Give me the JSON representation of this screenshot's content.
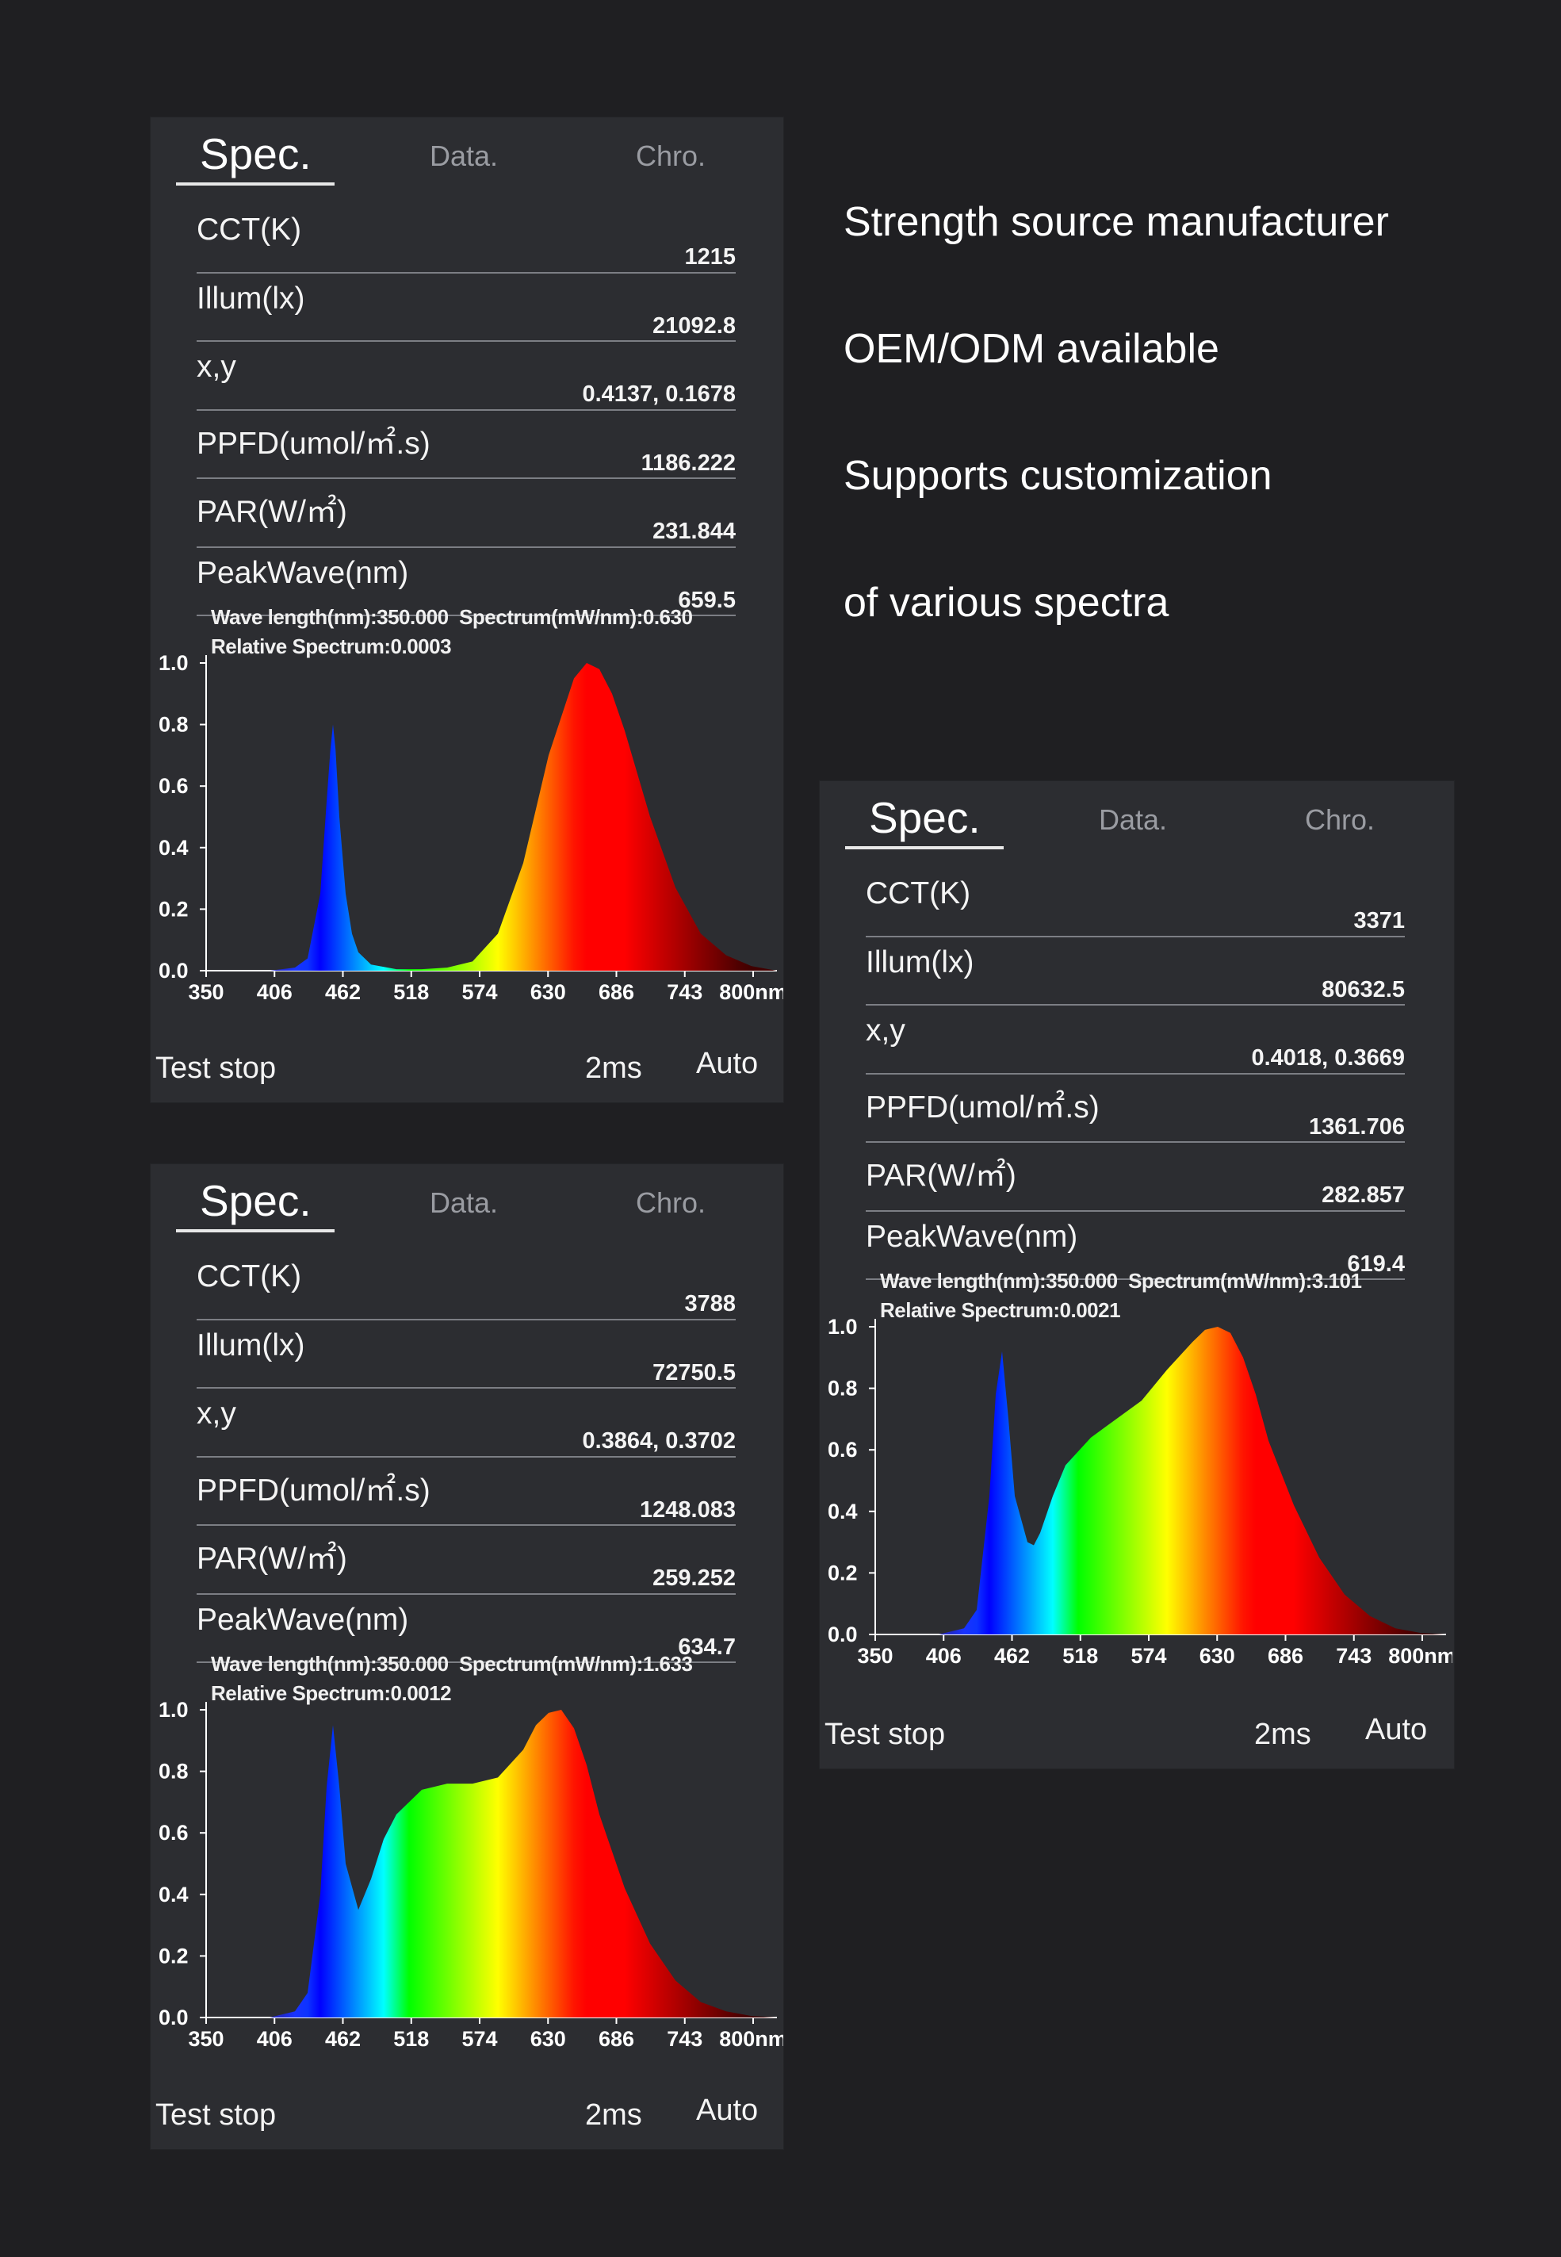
{
  "promo": [
    "Strength source manufacturer",
    "OEM/ODM available",
    "Supports customization",
    "of various spectra"
  ],
  "panels": [
    {
      "tabs": {
        "spec": "Spec.",
        "data": "Data.",
        "chro": "Chro."
      },
      "rows": [
        {
          "label": "CCT(K)",
          "value": "1215"
        },
        {
          "label": "Illum(lx)",
          "value": "21092.8"
        },
        {
          "label": "x,y",
          "value": "0.4137, 0.1678"
        },
        {
          "label": "PPFD(umol/㎡.s)",
          "value": "1186.222"
        },
        {
          "label": "PAR(W/㎡)",
          "value": "231.844"
        },
        {
          "label": "PeakWave(nm)",
          "value": "659.5"
        }
      ],
      "info": {
        "line1a": "Wave length(nm):350.000",
        "line1b": "Spectrum(mW/nm):0.630",
        "line2": "Relative Spectrum:0.0003"
      },
      "footer": {
        "stop": "Test stop",
        "time": "2ms",
        "mode": "Auto"
      }
    },
    {
      "tabs": {
        "spec": "Spec.",
        "data": "Data.",
        "chro": "Chro."
      },
      "rows": [
        {
          "label": "CCT(K)",
          "value": "3788"
        },
        {
          "label": "Illum(lx)",
          "value": "72750.5"
        },
        {
          "label": "x,y",
          "value": "0.3864, 0.3702"
        },
        {
          "label": "PPFD(umol/㎡.s)",
          "value": "1248.083"
        },
        {
          "label": "PAR(W/㎡)",
          "value": "259.252"
        },
        {
          "label": "PeakWave(nm)",
          "value": "634.7"
        }
      ],
      "info": {
        "line1a": "Wave length(nm):350.000",
        "line1b": "Spectrum(mW/nm):1.633",
        "line2": "Relative Spectrum:0.0012"
      },
      "footer": {
        "stop": "Test stop",
        "time": "2ms",
        "mode": "Auto"
      }
    },
    {
      "tabs": {
        "spec": "Spec.",
        "data": "Data.",
        "chro": "Chro."
      },
      "rows": [
        {
          "label": "CCT(K)",
          "value": "3371"
        },
        {
          "label": "Illum(lx)",
          "value": "80632.5"
        },
        {
          "label": "x,y",
          "value": "0.4018, 0.3669"
        },
        {
          "label": "PPFD(umol/㎡.s)",
          "value": "1361.706"
        },
        {
          "label": "PAR(W/㎡)",
          "value": "282.857"
        },
        {
          "label": "PeakWave(nm)",
          "value": "619.4"
        }
      ],
      "info": {
        "line1a": "Wave length(nm):350.000",
        "line1b": "Spectrum(mW/nm):3.101",
        "line2": "Relative Spectrum:0.0021"
      },
      "footer": {
        "stop": "Test stop",
        "time": "2ms",
        "mode": "Auto"
      }
    }
  ],
  "chart_data": [
    {
      "type": "area",
      "x_ticks": [
        "350",
        "406",
        "462",
        "518",
        "574",
        "630",
        "686",
        "743",
        "800nm"
      ],
      "y_ticks": [
        "0.0",
        "0.2",
        "0.4",
        "0.6",
        "0.8",
        "1.0"
      ],
      "xlim": [
        350,
        800
      ],
      "ylim": [
        0,
        1.0
      ],
      "series": [
        {
          "x": [
            350,
            400,
            420,
            430,
            440,
            445,
            448,
            450,
            452,
            455,
            460,
            465,
            470,
            480,
            500,
            520,
            540,
            560,
            580,
            600,
            620,
            640,
            650,
            660,
            670,
            680,
            700,
            720,
            740,
            760,
            780,
            800
          ],
          "values": [
            0,
            0,
            0.01,
            0.04,
            0.25,
            0.55,
            0.72,
            0.8,
            0.72,
            0.5,
            0.25,
            0.12,
            0.06,
            0.02,
            0.005,
            0.005,
            0.01,
            0.03,
            0.12,
            0.35,
            0.7,
            0.95,
            1.0,
            0.98,
            0.9,
            0.78,
            0.5,
            0.27,
            0.12,
            0.05,
            0.015,
            0
          ]
        }
      ]
    },
    {
      "type": "area",
      "x_ticks": [
        "350",
        "406",
        "462",
        "518",
        "574",
        "630",
        "686",
        "743",
        "800nm"
      ],
      "y_ticks": [
        "0.0",
        "0.2",
        "0.4",
        "0.6",
        "0.8",
        "1.0"
      ],
      "xlim": [
        350,
        800
      ],
      "ylim": [
        0,
        1.0
      ],
      "series": [
        {
          "x": [
            350,
            400,
            420,
            430,
            440,
            445,
            450,
            455,
            460,
            470,
            480,
            490,
            500,
            520,
            540,
            560,
            580,
            600,
            610,
            620,
            630,
            640,
            650,
            660,
            680,
            700,
            720,
            740,
            760,
            780,
            800
          ],
          "values": [
            0,
            0,
            0.02,
            0.08,
            0.4,
            0.75,
            0.95,
            0.75,
            0.5,
            0.35,
            0.45,
            0.58,
            0.66,
            0.74,
            0.76,
            0.76,
            0.78,
            0.87,
            0.95,
            0.99,
            1.0,
            0.94,
            0.82,
            0.66,
            0.42,
            0.24,
            0.12,
            0.05,
            0.02,
            0.005,
            0
          ]
        }
      ]
    },
    {
      "type": "area",
      "x_ticks": [
        "350",
        "406",
        "462",
        "518",
        "574",
        "630",
        "686",
        "743",
        "800nm"
      ],
      "y_ticks": [
        "0.0",
        "0.2",
        "0.4",
        "0.6",
        "0.8",
        "1.0"
      ],
      "xlim": [
        350,
        800
      ],
      "ylim": [
        0,
        1.0
      ],
      "series": [
        {
          "x": [
            350,
            400,
            420,
            430,
            440,
            445,
            450,
            455,
            460,
            470,
            475,
            480,
            490,
            500,
            520,
            540,
            560,
            580,
            600,
            610,
            620,
            630,
            640,
            650,
            660,
            680,
            700,
            720,
            740,
            760,
            780,
            800
          ],
          "values": [
            0,
            0,
            0.02,
            0.08,
            0.45,
            0.78,
            0.92,
            0.7,
            0.45,
            0.3,
            0.29,
            0.33,
            0.45,
            0.55,
            0.64,
            0.7,
            0.76,
            0.86,
            0.95,
            0.99,
            1.0,
            0.98,
            0.9,
            0.78,
            0.63,
            0.42,
            0.25,
            0.13,
            0.06,
            0.02,
            0.005,
            0
          ]
        }
      ]
    }
  ]
}
